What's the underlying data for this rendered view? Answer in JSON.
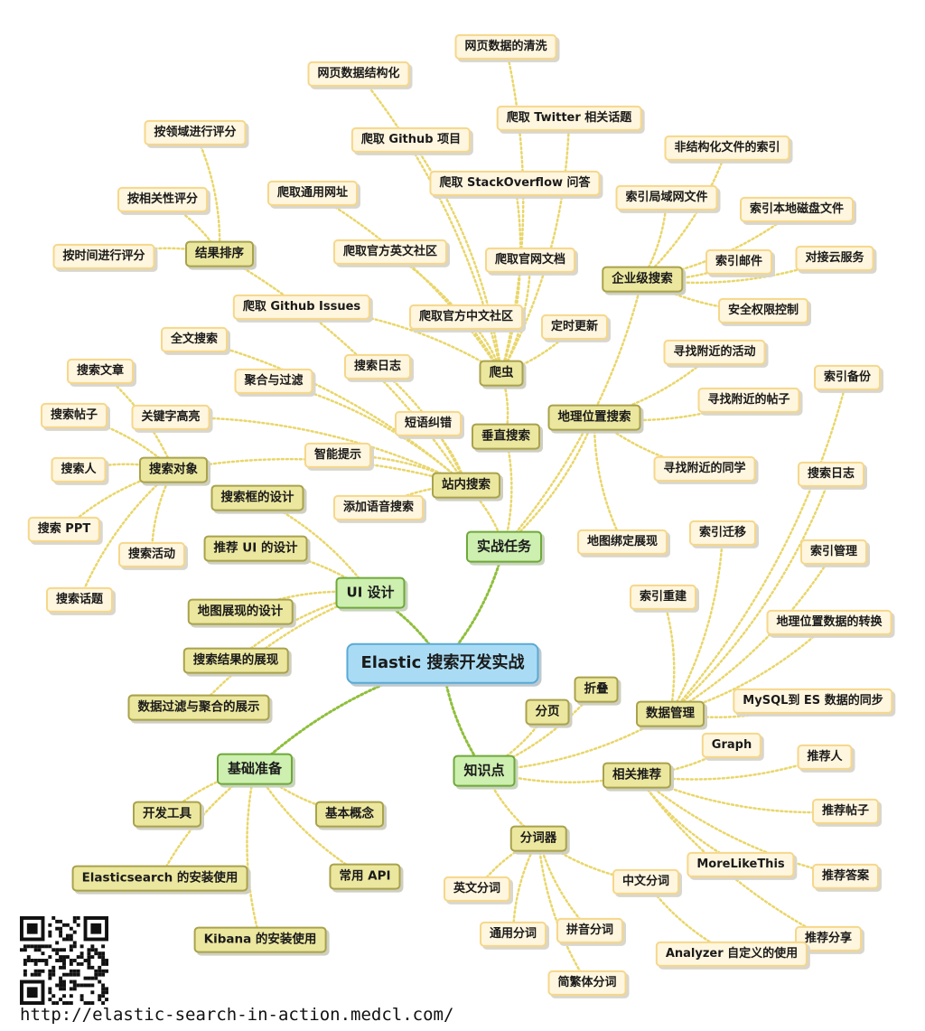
{
  "root": {
    "id": "root",
    "text": "Elastic 搜索开发实战",
    "color": "#a9dcf4"
  },
  "nodes": [
    {
      "id": "ui",
      "text": "UI 设计",
      "parent": "root",
      "level": 1
    },
    {
      "id": "basic",
      "text": "基础准备",
      "parent": "root",
      "level": 1
    },
    {
      "id": "practice",
      "text": "实战任务",
      "parent": "root",
      "level": 1
    },
    {
      "id": "knowledge",
      "text": "知识点",
      "parent": "root",
      "level": 1
    },
    {
      "id": "ui1",
      "text": "搜索框的设计",
      "parent": "ui",
      "level": 2
    },
    {
      "id": "ui2",
      "text": "推荐 UI 的设计",
      "parent": "ui",
      "level": 2
    },
    {
      "id": "ui3",
      "text": "地图展现的设计",
      "parent": "ui",
      "level": 2
    },
    {
      "id": "ui4",
      "text": "搜索结果的展现",
      "parent": "ui",
      "level": 2
    },
    {
      "id": "ui5",
      "text": "数据过滤与聚合的展示",
      "parent": "ui",
      "level": 2
    },
    {
      "id": "b1",
      "text": "开发工具",
      "parent": "basic",
      "level": 2
    },
    {
      "id": "b2",
      "text": "Elasticsearch 的安装使用",
      "parent": "basic",
      "level": 2
    },
    {
      "id": "b3",
      "text": "Kibana 的安装使用",
      "parent": "basic",
      "level": 2
    },
    {
      "id": "b4",
      "text": "基本概念",
      "parent": "basic",
      "level": 2
    },
    {
      "id": "b5",
      "text": "常用 API",
      "parent": "basic",
      "level": 2
    },
    {
      "id": "site",
      "text": "站内搜索",
      "parent": "practice",
      "level": 2
    },
    {
      "id": "vertical",
      "text": "垂直搜索",
      "parent": "practice",
      "level": 2
    },
    {
      "id": "geo",
      "text": "地理位置搜索",
      "parent": "practice",
      "level": 2
    },
    {
      "id": "enterprise",
      "text": "企业级搜索",
      "parent": "practice",
      "level": 2
    },
    {
      "id": "crawler",
      "text": "爬虫",
      "parent": "vertical",
      "level": 2
    },
    {
      "id": "smart",
      "text": "智能提示",
      "parent": "site",
      "level": 3
    },
    {
      "id": "spell",
      "text": "短语纠错",
      "parent": "site",
      "level": 3
    },
    {
      "id": "voice",
      "text": "添加语音搜索",
      "parent": "site",
      "level": 3
    },
    {
      "id": "agg",
      "text": "聚合与过滤",
      "parent": "site",
      "level": 3
    },
    {
      "id": "fulltext",
      "text": "全文搜索",
      "parent": "site",
      "level": 3
    },
    {
      "id": "highlight",
      "text": "关键字高亮",
      "parent": "site",
      "level": 3
    },
    {
      "id": "slog",
      "text": "搜索日志",
      "parent": "site",
      "level": 3
    },
    {
      "id": "sort",
      "text": "结果排序",
      "parent": "site",
      "level": 2
    },
    {
      "id": "target",
      "text": "搜索对象",
      "parent": "site",
      "level": 2
    },
    {
      "id": "s1",
      "text": "按领域进行评分",
      "parent": "sort",
      "level": 3
    },
    {
      "id": "s2",
      "text": "按相关性评分",
      "parent": "sort",
      "level": 3
    },
    {
      "id": "s3",
      "text": "按时间进行评分",
      "parent": "sort",
      "level": 3
    },
    {
      "id": "t1",
      "text": "搜索文章",
      "parent": "target",
      "level": 3
    },
    {
      "id": "t2",
      "text": "搜索帖子",
      "parent": "target",
      "level": 3
    },
    {
      "id": "t3",
      "text": "搜索人",
      "parent": "target",
      "level": 3
    },
    {
      "id": "t4",
      "text": "搜索 PPT",
      "parent": "target",
      "level": 3
    },
    {
      "id": "t5",
      "text": "搜索活动",
      "parent": "target",
      "level": 3
    },
    {
      "id": "t6",
      "text": "搜索话题",
      "parent": "target",
      "level": 3
    },
    {
      "id": "c1",
      "text": "网页数据的清洗",
      "parent": "crawler",
      "level": 3
    },
    {
      "id": "c2",
      "text": "网页数据结构化",
      "parent": "crawler",
      "level": 3
    },
    {
      "id": "c3",
      "text": "爬取 Twitter 相关话题",
      "parent": "crawler",
      "level": 3
    },
    {
      "id": "c4",
      "text": "爬取 Github 项目",
      "parent": "crawler",
      "level": 3
    },
    {
      "id": "c5",
      "text": "爬取 StackOverflow 问答",
      "parent": "crawler",
      "level": 3
    },
    {
      "id": "c6",
      "text": "爬取通用网址",
      "parent": "crawler",
      "level": 3
    },
    {
      "id": "c7",
      "text": "爬取官方英文社区",
      "parent": "crawler",
      "level": 3
    },
    {
      "id": "c8",
      "text": "爬取官网文档",
      "parent": "crawler",
      "level": 3
    },
    {
      "id": "c9",
      "text": "爬取 Github Issues",
      "parent": "crawler",
      "level": 3
    },
    {
      "id": "c10",
      "text": "爬取官方中文社区",
      "parent": "crawler",
      "level": 3
    },
    {
      "id": "c11",
      "text": "定时更新",
      "parent": "crawler",
      "level": 3
    },
    {
      "id": "e1",
      "text": "非结构化文件的索引",
      "parent": "enterprise",
      "level": 3
    },
    {
      "id": "e2",
      "text": "索引局域网文件",
      "parent": "enterprise",
      "level": 3
    },
    {
      "id": "e3",
      "text": "索引本地磁盘文件",
      "parent": "enterprise",
      "level": 3
    },
    {
      "id": "e4",
      "text": "索引邮件",
      "parent": "enterprise",
      "level": 3
    },
    {
      "id": "e5",
      "text": "对接云服务",
      "parent": "enterprise",
      "level": 3
    },
    {
      "id": "e6",
      "text": "安全权限控制",
      "parent": "enterprise",
      "level": 3
    },
    {
      "id": "g1",
      "text": "寻找附近的活动",
      "parent": "geo",
      "level": 3
    },
    {
      "id": "g2",
      "text": "寻找附近的帖子",
      "parent": "geo",
      "level": 3
    },
    {
      "id": "g3",
      "text": "寻找附近的同学",
      "parent": "geo",
      "level": 3
    },
    {
      "id": "g4",
      "text": "地图绑定展现",
      "parent": "geo",
      "level": 3
    },
    {
      "id": "dm",
      "text": "数据管理",
      "parent": "knowledge",
      "level": 2
    },
    {
      "id": "rec",
      "text": "相关推荐",
      "parent": "knowledge",
      "level": 2
    },
    {
      "id": "tok",
      "text": "分词器",
      "parent": "knowledge",
      "level": 2
    },
    {
      "id": "page",
      "text": "分页",
      "parent": "knowledge",
      "level": 2
    },
    {
      "id": "fold",
      "text": "折叠",
      "parent": "knowledge",
      "level": 2
    },
    {
      "id": "d1",
      "text": "索引备份",
      "parent": "dm",
      "level": 3
    },
    {
      "id": "d2",
      "text": "搜索日志",
      "parent": "dm",
      "level": 3
    },
    {
      "id": "d3",
      "text": "索引迁移",
      "parent": "dm",
      "level": 3
    },
    {
      "id": "d4",
      "text": "索引管理",
      "parent": "dm",
      "level": 3
    },
    {
      "id": "d5",
      "text": "索引重建",
      "parent": "dm",
      "level": 3
    },
    {
      "id": "d6",
      "text": "地理位置数据的转换",
      "parent": "dm",
      "level": 3
    },
    {
      "id": "d7",
      "text": "MySQL到 ES 数据的同步",
      "parent": "dm",
      "level": 3
    },
    {
      "id": "r1",
      "text": "Graph",
      "parent": "rec",
      "level": 3
    },
    {
      "id": "r2",
      "text": "推荐人",
      "parent": "rec",
      "level": 3
    },
    {
      "id": "r3",
      "text": "推荐帖子",
      "parent": "rec",
      "level": 3
    },
    {
      "id": "r4",
      "text": "MoreLikeThis",
      "parent": "rec",
      "level": 3
    },
    {
      "id": "r5",
      "text": "推荐答案",
      "parent": "rec",
      "level": 3
    },
    {
      "id": "r6",
      "text": "推荐分享",
      "parent": "rec",
      "level": 3
    },
    {
      "id": "k1",
      "text": "英文分词",
      "parent": "tok",
      "level": 3
    },
    {
      "id": "k2",
      "text": "通用分词",
      "parent": "tok",
      "level": 3
    },
    {
      "id": "k3",
      "text": "拼音分词",
      "parent": "tok",
      "level": 3
    },
    {
      "id": "k4",
      "text": "简繁体分词",
      "parent": "tok",
      "level": 3
    },
    {
      "id": "k5",
      "text": "中文分词",
      "parent": "tok",
      "level": 3
    },
    {
      "id": "k6",
      "text": "Analyzer 自定义的使用",
      "parent": "k5",
      "level": 3
    }
  ],
  "footer": {
    "url": "http://elastic-search-in-action.medcl.com/"
  },
  "colors": {
    "link": "#e9d66a",
    "link_root": "#8fbf3c",
    "qr": "#111111"
  }
}
